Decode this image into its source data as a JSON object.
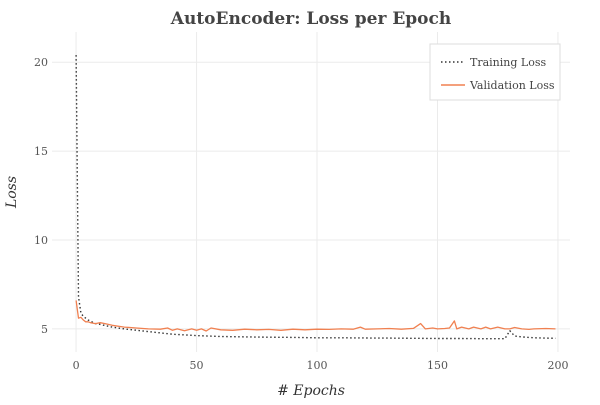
{
  "chart_data": {
    "type": "line",
    "title": "AutoEncoder: Loss per Epoch",
    "xlabel": "# Epochs",
    "ylabel": "Loss",
    "xlim": [
      -10,
      205
    ],
    "ylim": [
      3.7,
      21.7
    ],
    "xticks": [
      0,
      50,
      100,
      150,
      200
    ],
    "yticks": [
      5,
      10,
      15,
      20
    ],
    "grid": true,
    "legend_position": "top-right",
    "series": [
      {
        "name": "Training Loss",
        "style": "dotted",
        "color": "#333333",
        "x": [
          0,
          1,
          2,
          3,
          5,
          8,
          10,
          15,
          20,
          30,
          40,
          50,
          60,
          70,
          80,
          90,
          100,
          110,
          120,
          130,
          140,
          150,
          160,
          170,
          175,
          178,
          180,
          182,
          185,
          190,
          195,
          199
        ],
        "y": [
          20.4,
          6.8,
          5.9,
          5.7,
          5.5,
          5.3,
          5.25,
          5.1,
          5.0,
          4.85,
          4.7,
          4.62,
          4.57,
          4.55,
          4.53,
          4.52,
          4.5,
          4.5,
          4.49,
          4.48,
          4.47,
          4.46,
          4.46,
          4.45,
          4.45,
          4.45,
          4.9,
          4.6,
          4.55,
          4.5,
          4.48,
          4.47
        ]
      },
      {
        "name": "Validation Loss",
        "style": "solid",
        "color": "#f08050",
        "x": [
          0,
          1,
          2,
          3,
          4,
          5,
          6,
          8,
          10,
          12,
          15,
          20,
          25,
          30,
          35,
          38,
          40,
          42,
          45,
          48,
          50,
          52,
          54,
          56,
          60,
          65,
          70,
          75,
          80,
          85,
          90,
          95,
          100,
          105,
          110,
          115,
          118,
          120,
          125,
          130,
          135,
          140,
          143,
          145,
          148,
          150,
          153,
          155,
          157,
          158,
          160,
          163,
          165,
          168,
          170,
          172,
          175,
          178,
          180,
          182,
          185,
          188,
          190,
          195,
          199
        ],
        "y": [
          6.6,
          5.6,
          5.65,
          5.5,
          5.4,
          5.4,
          5.35,
          5.3,
          5.35,
          5.3,
          5.2,
          5.1,
          5.05,
          5.0,
          4.98,
          5.05,
          4.92,
          5.0,
          4.9,
          5.0,
          4.92,
          5.0,
          4.88,
          5.05,
          4.95,
          4.92,
          4.98,
          4.95,
          4.97,
          4.92,
          4.98,
          4.95,
          4.98,
          4.97,
          5.0,
          4.98,
          5.1,
          4.98,
          5.0,
          5.02,
          4.98,
          5.03,
          5.3,
          5.0,
          5.05,
          5.0,
          5.02,
          5.05,
          5.45,
          5.0,
          5.1,
          5.0,
          5.1,
          5.0,
          5.1,
          5.0,
          5.1,
          5.0,
          5.0,
          5.08,
          5.0,
          4.97,
          5.0,
          5.02,
          5.0
        ]
      }
    ]
  }
}
